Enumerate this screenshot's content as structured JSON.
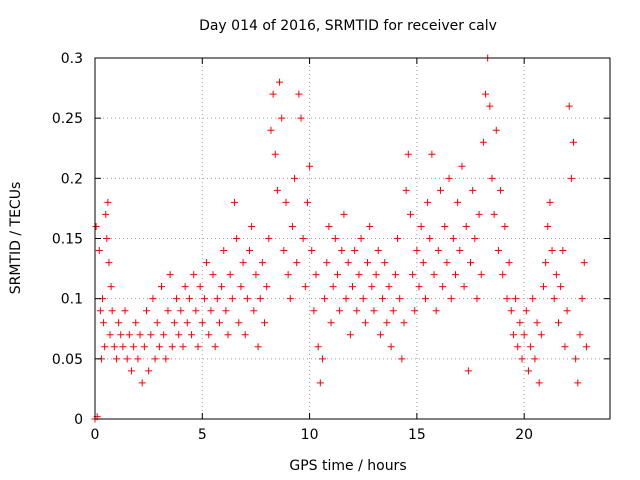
{
  "chart_data": {
    "type": "scatter",
    "title": "Day 014 of 2016, SRMTID for receiver calv",
    "xlabel": "GPS time / hours",
    "ylabel": "SRMTID / TECUs",
    "xlim": [
      0,
      24
    ],
    "ylim": [
      0,
      0.3
    ],
    "xticks": [
      0,
      5,
      10,
      15,
      20
    ],
    "xtick_labels": [
      "0",
      "5",
      "10",
      "15",
      "20"
    ],
    "yticks": [
      0,
      0.05,
      0.1,
      0.15,
      0.2,
      0.25,
      0.3
    ],
    "ytick_labels": [
      "0",
      "0.05",
      "0.1",
      "0.15",
      "0.2",
      "0.25",
      "0.3"
    ],
    "grid": true,
    "marker": "+",
    "color": "#ff0000",
    "series": [
      {
        "name": "SRMTID",
        "points": [
          [
            0.0,
            0.0
          ],
          [
            0.05,
            0.16
          ],
          [
            0.1,
            0.002
          ],
          [
            0.2,
            0.14
          ],
          [
            0.25,
            0.09
          ],
          [
            0.3,
            0.05
          ],
          [
            0.35,
            0.1
          ],
          [
            0.4,
            0.08
          ],
          [
            0.45,
            0.06
          ],
          [
            0.5,
            0.17
          ],
          [
            0.55,
            0.15
          ],
          [
            0.6,
            0.18
          ],
          [
            0.65,
            0.13
          ],
          [
            0.7,
            0.07
          ],
          [
            0.75,
            0.11
          ],
          [
            0.8,
            0.09
          ],
          [
            0.9,
            0.06
          ],
          [
            1.0,
            0.05
          ],
          [
            1.1,
            0.08
          ],
          [
            1.2,
            0.07
          ],
          [
            1.3,
            0.06
          ],
          [
            1.4,
            0.09
          ],
          [
            1.5,
            0.05
          ],
          [
            1.6,
            0.07
          ],
          [
            1.7,
            0.04
          ],
          [
            1.8,
            0.06
          ],
          [
            1.9,
            0.08
          ],
          [
            2.0,
            0.05
          ],
          [
            2.1,
            0.07
          ],
          [
            2.2,
            0.03
          ],
          [
            2.3,
            0.06
          ],
          [
            2.4,
            0.09
          ],
          [
            2.5,
            0.04
          ],
          [
            2.6,
            0.07
          ],
          [
            2.7,
            0.1
          ],
          [
            2.8,
            0.05
          ],
          [
            2.9,
            0.08
          ],
          [
            3.0,
            0.06
          ],
          [
            3.1,
            0.11
          ],
          [
            3.2,
            0.07
          ],
          [
            3.3,
            0.05
          ],
          [
            3.4,
            0.09
          ],
          [
            3.5,
            0.12
          ],
          [
            3.6,
            0.06
          ],
          [
            3.7,
            0.08
          ],
          [
            3.8,
            0.1
          ],
          [
            3.9,
            0.07
          ],
          [
            4.0,
            0.09
          ],
          [
            4.1,
            0.06
          ],
          [
            4.2,
            0.11
          ],
          [
            4.3,
            0.08
          ],
          [
            4.4,
            0.1
          ],
          [
            4.5,
            0.07
          ],
          [
            4.6,
            0.12
          ],
          [
            4.7,
            0.09
          ],
          [
            4.8,
            0.06
          ],
          [
            4.9,
            0.11
          ],
          [
            5.0,
            0.08
          ],
          [
            5.1,
            0.1
          ],
          [
            5.2,
            0.13
          ],
          [
            5.3,
            0.07
          ],
          [
            5.4,
            0.09
          ],
          [
            5.5,
            0.12
          ],
          [
            5.6,
            0.06
          ],
          [
            5.7,
            0.1
          ],
          [
            5.8,
            0.08
          ],
          [
            5.9,
            0.11
          ],
          [
            6.0,
            0.14
          ],
          [
            6.1,
            0.09
          ],
          [
            6.2,
            0.07
          ],
          [
            6.3,
            0.12
          ],
          [
            6.4,
            0.1
          ],
          [
            6.5,
            0.18
          ],
          [
            6.6,
            0.15
          ],
          [
            6.7,
            0.08
          ],
          [
            6.8,
            0.11
          ],
          [
            6.9,
            0.13
          ],
          [
            7.0,
            0.07
          ],
          [
            7.1,
            0.1
          ],
          [
            7.2,
            0.14
          ],
          [
            7.3,
            0.16
          ],
          [
            7.4,
            0.09
          ],
          [
            7.5,
            0.12
          ],
          [
            7.6,
            0.06
          ],
          [
            7.7,
            0.1
          ],
          [
            7.8,
            0.13
          ],
          [
            7.9,
            0.08
          ],
          [
            8.0,
            0.11
          ],
          [
            8.1,
            0.15
          ],
          [
            8.2,
            0.24
          ],
          [
            8.3,
            0.27
          ],
          [
            8.4,
            0.22
          ],
          [
            8.5,
            0.19
          ],
          [
            8.6,
            0.28
          ],
          [
            8.7,
            0.25
          ],
          [
            8.8,
            0.14
          ],
          [
            8.9,
            0.18
          ],
          [
            9.0,
            0.12
          ],
          [
            9.1,
            0.1
          ],
          [
            9.2,
            0.16
          ],
          [
            9.3,
            0.2
          ],
          [
            9.4,
            0.13
          ],
          [
            9.5,
            0.27
          ],
          [
            9.6,
            0.25
          ],
          [
            9.7,
            0.15
          ],
          [
            9.8,
            0.11
          ],
          [
            9.9,
            0.18
          ],
          [
            10.0,
            0.21
          ],
          [
            10.1,
            0.14
          ],
          [
            10.2,
            0.09
          ],
          [
            10.3,
            0.12
          ],
          [
            10.4,
            0.06
          ],
          [
            10.5,
            0.03
          ],
          [
            10.6,
            0.05
          ],
          [
            10.7,
            0.1
          ],
          [
            10.8,
            0.13
          ],
          [
            10.9,
            0.16
          ],
          [
            11.0,
            0.08
          ],
          [
            11.1,
            0.11
          ],
          [
            11.2,
            0.15
          ],
          [
            11.3,
            0.12
          ],
          [
            11.4,
            0.09
          ],
          [
            11.5,
            0.14
          ],
          [
            11.6,
            0.17
          ],
          [
            11.7,
            0.1
          ],
          [
            11.8,
            0.13
          ],
          [
            11.9,
            0.07
          ],
          [
            12.0,
            0.11
          ],
          [
            12.1,
            0.14
          ],
          [
            12.2,
            0.09
          ],
          [
            12.3,
            0.12
          ],
          [
            12.4,
            0.15
          ],
          [
            12.5,
            0.1
          ],
          [
            12.6,
            0.08
          ],
          [
            12.7,
            0.13
          ],
          [
            12.8,
            0.16
          ],
          [
            12.9,
            0.11
          ],
          [
            13.0,
            0.09
          ],
          [
            13.1,
            0.12
          ],
          [
            13.2,
            0.14
          ],
          [
            13.3,
            0.07
          ],
          [
            13.4,
            0.1
          ],
          [
            13.5,
            0.13
          ],
          [
            13.6,
            0.08
          ],
          [
            13.7,
            0.11
          ],
          [
            13.8,
            0.06
          ],
          [
            13.9,
            0.09
          ],
          [
            14.0,
            0.12
          ],
          [
            14.1,
            0.15
          ],
          [
            14.2,
            0.1
          ],
          [
            14.3,
            0.05
          ],
          [
            14.4,
            0.08
          ],
          [
            14.5,
            0.19
          ],
          [
            14.6,
            0.22
          ],
          [
            14.7,
            0.17
          ],
          [
            14.8,
            0.12
          ],
          [
            14.9,
            0.09
          ],
          [
            15.0,
            0.14
          ],
          [
            15.1,
            0.11
          ],
          [
            15.2,
            0.16
          ],
          [
            15.3,
            0.13
          ],
          [
            15.4,
            0.1
          ],
          [
            15.5,
            0.18
          ],
          [
            15.6,
            0.15
          ],
          [
            15.7,
            0.22
          ],
          [
            15.8,
            0.12
          ],
          [
            15.9,
            0.09
          ],
          [
            16.0,
            0.14
          ],
          [
            16.1,
            0.19
          ],
          [
            16.2,
            0.11
          ],
          [
            16.3,
            0.16
          ],
          [
            16.4,
            0.13
          ],
          [
            16.5,
            0.2
          ],
          [
            16.6,
            0.1
          ],
          [
            16.7,
            0.15
          ],
          [
            16.8,
            0.12
          ],
          [
            16.9,
            0.18
          ],
          [
            17.0,
            0.14
          ],
          [
            17.1,
            0.21
          ],
          [
            17.2,
            0.11
          ],
          [
            17.3,
            0.16
          ],
          [
            17.4,
            0.04
          ],
          [
            17.5,
            0.13
          ],
          [
            17.6,
            0.19
          ],
          [
            17.7,
            0.15
          ],
          [
            17.8,
            0.1
          ],
          [
            17.9,
            0.17
          ],
          [
            18.0,
            0.12
          ],
          [
            18.1,
            0.23
          ],
          [
            18.2,
            0.27
          ],
          [
            18.3,
            0.3
          ],
          [
            18.4,
            0.26
          ],
          [
            18.5,
            0.2
          ],
          [
            18.6,
            0.17
          ],
          [
            18.7,
            0.24
          ],
          [
            18.8,
            0.14
          ],
          [
            18.9,
            0.19
          ],
          [
            19.0,
            0.12
          ],
          [
            19.1,
            0.16
          ],
          [
            19.2,
            0.1
          ],
          [
            19.3,
            0.13
          ],
          [
            19.4,
            0.09
          ],
          [
            19.5,
            0.07
          ],
          [
            19.6,
            0.1
          ],
          [
            19.7,
            0.06
          ],
          [
            19.8,
            0.08
          ],
          [
            19.9,
            0.05
          ],
          [
            20.0,
            0.07
          ],
          [
            20.1,
            0.09
          ],
          [
            20.2,
            0.04
          ],
          [
            20.3,
            0.06
          ],
          [
            20.4,
            0.1
          ],
          [
            20.5,
            0.05
          ],
          [
            20.6,
            0.08
          ],
          [
            20.7,
            0.03
          ],
          [
            20.8,
            0.07
          ],
          [
            20.9,
            0.11
          ],
          [
            21.0,
            0.13
          ],
          [
            21.1,
            0.16
          ],
          [
            21.2,
            0.18
          ],
          [
            21.3,
            0.14
          ],
          [
            21.4,
            0.1
          ],
          [
            21.5,
            0.12
          ],
          [
            21.6,
            0.08
          ],
          [
            21.7,
            0.11
          ],
          [
            21.8,
            0.14
          ],
          [
            21.9,
            0.06
          ],
          [
            22.0,
            0.09
          ],
          [
            22.1,
            0.26
          ],
          [
            22.2,
            0.2
          ],
          [
            22.3,
            0.23
          ],
          [
            22.4,
            0.05
          ],
          [
            22.5,
            0.03
          ],
          [
            22.6,
            0.07
          ],
          [
            22.7,
            0.1
          ],
          [
            22.8,
            0.13
          ],
          [
            22.9,
            0.06
          ]
        ]
      }
    ]
  }
}
